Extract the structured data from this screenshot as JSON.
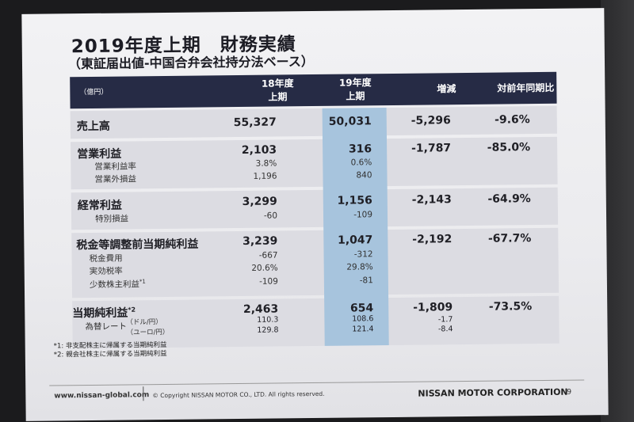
{
  "title": "2019年度上期　財務実績",
  "subtitle": "（東証届出値-中国合弁会社持分法ベース）",
  "header": {
    "unit": "（億円）",
    "col1": "18年度\n上期",
    "col2": "19年度\n上期",
    "col3": "増減",
    "col4": "対前年同期比"
  },
  "rows": {
    "sales": {
      "label": "売上高",
      "v18": "55,327",
      "v19": "50,031",
      "diff": "-5,296",
      "ratio": "-9.6%"
    },
    "op": {
      "label": "営業利益",
      "v18": "2,103",
      "v19": "316",
      "diff": "-1,787",
      "ratio": "-85.0%"
    },
    "op_margin": {
      "label": "営業利益率",
      "v18": "3.8%",
      "v19": "0.6%"
    },
    "nonop": {
      "label": "営業外損益",
      "v18": "1,196",
      "v19": "840"
    },
    "ordinary": {
      "label": "経常利益",
      "v18": "3,299",
      "v19": "1,156",
      "diff": "-2,143",
      "ratio": "-64.9%"
    },
    "special": {
      "label": "特別損益",
      "v18": "-60",
      "v19": "-109"
    },
    "pretax": {
      "label": "税金等調整前当期純利益",
      "v18": "3,239",
      "v19": "1,047",
      "diff": "-2,192",
      "ratio": "-67.7%"
    },
    "tax": {
      "label": "税金費用",
      "v18": "-667",
      "v19": "-312"
    },
    "effrate": {
      "label": "実効税率",
      "v18": "20.6%",
      "v19": "29.8%"
    },
    "minority": {
      "label": "少数株主利益",
      "sup": "*1",
      "v18": "-109",
      "v19": "-81"
    },
    "net": {
      "label": "当期純利益",
      "sup": "*2",
      "v18": "2,463",
      "v19": "654",
      "diff": "-1,809",
      "ratio": "-73.5%"
    },
    "fx_label": "為替レート",
    "fx_usd": {
      "label": "（ドル/円）",
      "v18": "110.3",
      "v19": "108.6",
      "diff": "-1.7"
    },
    "fx_eur": {
      "label": "（ユーロ/円）",
      "v18": "129.8",
      "v19": "121.4",
      "diff": "-8.4"
    }
  },
  "notes": [
    "*1: 非支配株主に帰属する当期純利益",
    "*2: 親会社株主に帰属する当期純利益"
  ],
  "footer": {
    "url": "www.nissan-global.com",
    "copyright": "© Copyright NISSAN MOTOR CO., LTD. All rights reserved.",
    "company": "NISSAN MOTOR CORPORATION",
    "page": "9"
  }
}
